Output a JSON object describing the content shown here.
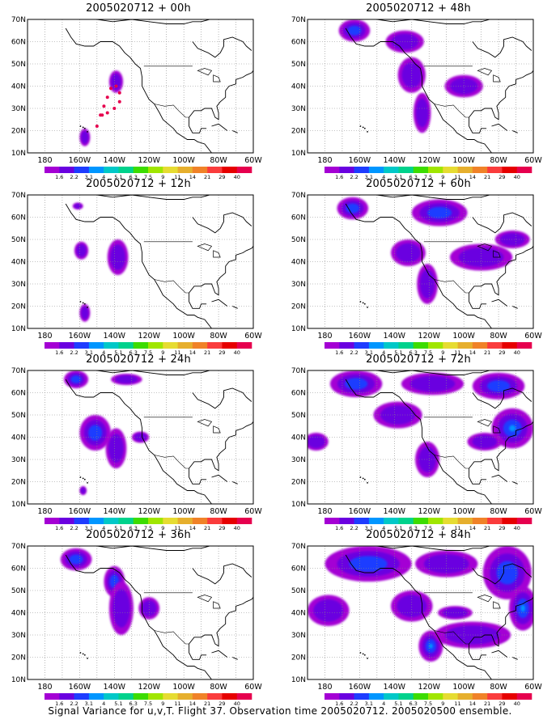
{
  "figure_caption": "Signal Variance for u,v,T. Flight 37. Observation time 2005020712. 2005020500 ensemble.",
  "colors": {
    "levels": [
      "#a400d4",
      "#6a00e0",
      "#1e3cff",
      "#0096ff",
      "#00c8c8",
      "#00d28c",
      "#3cdc00",
      "#a0e600",
      "#e6dc32",
      "#e6af2d",
      "#f08228",
      "#fa3c3c",
      "#e60000",
      "#e6004e"
    ],
    "map_line": "#000000",
    "grid": "#888888"
  },
  "chart_data": [
    {
      "type": "heatmap",
      "title": "2005020712 + 00h",
      "x_ticks": [
        "180",
        "160W",
        "140W",
        "120W",
        "100W",
        "80W",
        "60W"
      ],
      "y_ticks": [
        "10N",
        "20N",
        "30N",
        "40N",
        "50N",
        "60N",
        "70N"
      ],
      "xlim": [
        -190,
        -60
      ],
      "ylim": [
        10,
        70
      ],
      "grid": true,
      "colorbar_labels": [
        "1.6",
        "2.2",
        "3.1",
        "4",
        "5.1",
        "6.3",
        "7.5",
        "9",
        "11",
        "14",
        "21",
        "29",
        "40"
      ],
      "blobs": [
        {
          "lon": -139,
          "lat": 42,
          "rlon": 4,
          "rlat": 5,
          "level": 1
        },
        {
          "lon": -157,
          "lat": 17,
          "rlon": 3,
          "rlat": 4,
          "level": 1
        }
      ],
      "track": [
        [
          -150,
          22
        ],
        [
          -148,
          27
        ],
        [
          -146,
          31
        ],
        [
          -144,
          35
        ],
        [
          -142,
          39
        ],
        [
          -139,
          40
        ],
        [
          -137,
          37
        ],
        [
          -137,
          33
        ],
        [
          -140,
          30
        ],
        [
          -144,
          28
        ],
        [
          -147,
          27
        ]
      ]
    },
    {
      "type": "heatmap",
      "title": "2005020712 + 12h",
      "x_ticks": [
        "180",
        "160W",
        "140W",
        "120W",
        "100W",
        "80W",
        "60W"
      ],
      "y_ticks": [
        "10N",
        "20N",
        "30N",
        "40N",
        "50N",
        "60N",
        "70N"
      ],
      "xlim": [
        -190,
        -60
      ],
      "ylim": [
        10,
        70
      ],
      "grid": true,
      "colorbar_labels": [
        "1.6",
        "2.2",
        "3.1",
        "4",
        "5.1",
        "6.3",
        "7.5",
        "9",
        "11",
        "14",
        "21",
        "29",
        "40"
      ],
      "blobs": [
        {
          "lon": -138,
          "lat": 42,
          "rlon": 6,
          "rlat": 8,
          "level": 1
        },
        {
          "lon": -159,
          "lat": 45,
          "rlon": 4,
          "rlat": 4,
          "level": 1
        },
        {
          "lon": -157,
          "lat": 17,
          "rlon": 3,
          "rlat": 4,
          "level": 1
        },
        {
          "lon": -161,
          "lat": 65,
          "rlon": 3,
          "rlat": 1.5,
          "level": 1
        }
      ],
      "track": []
    },
    {
      "type": "heatmap",
      "title": "2005020712 + 24h",
      "x_ticks": [
        "180",
        "160W",
        "140W",
        "120W",
        "100W",
        "80W",
        "60W"
      ],
      "y_ticks": [
        "10N",
        "20N",
        "30N",
        "40N",
        "50N",
        "60N",
        "70N"
      ],
      "xlim": [
        -190,
        -60
      ],
      "ylim": [
        10,
        70
      ],
      "grid": true,
      "colorbar_labels": [
        "1.6",
        "2.2",
        "3.1",
        "4",
        "5.1",
        "6.3",
        "7.5",
        "9",
        "11",
        "14",
        "21",
        "29",
        "40"
      ],
      "blobs": [
        {
          "lon": -151,
          "lat": 42,
          "rlon": 9,
          "rlat": 8,
          "level": 2
        },
        {
          "lon": -139,
          "lat": 35,
          "rlon": 6,
          "rlat": 9,
          "level": 1
        },
        {
          "lon": -162,
          "lat": 66,
          "rlon": 7,
          "rlat": 4,
          "level": 2
        },
        {
          "lon": -133,
          "lat": 66,
          "rlon": 9,
          "rlat": 2.5,
          "level": 1
        },
        {
          "lon": -125,
          "lat": 40,
          "rlon": 5,
          "rlat": 2.5,
          "level": 1
        },
        {
          "lon": -158,
          "lat": 16,
          "rlon": 2,
          "rlat": 2,
          "level": 1
        }
      ],
      "track": []
    },
    {
      "type": "heatmap",
      "title": "2005020712 + 36h",
      "x_ticks": [
        "180",
        "160W",
        "140W",
        "120W",
        "100W",
        "80W",
        "60W"
      ],
      "y_ticks": [
        "10N",
        "20N",
        "30N",
        "40N",
        "50N",
        "60N",
        "70N"
      ],
      "xlim": [
        -190,
        -60
      ],
      "ylim": [
        10,
        70
      ],
      "grid": true,
      "colorbar_labels": [
        "1.6",
        "2.2",
        "3.1",
        "4",
        "5.1",
        "6.3",
        "7.5",
        "9",
        "11",
        "14",
        "21",
        "29",
        "40"
      ],
      "blobs": [
        {
          "lon": -162,
          "lat": 64,
          "rlon": 9,
          "rlat": 5,
          "level": 2
        },
        {
          "lon": -140,
          "lat": 54,
          "rlon": 6,
          "rlat": 7,
          "level": 2
        },
        {
          "lon": -136,
          "lat": 42,
          "rlon": 7,
          "rlat": 12,
          "level": 1
        },
        {
          "lon": -120,
          "lat": 42,
          "rlon": 6,
          "rlat": 5,
          "level": 1
        }
      ],
      "track": []
    },
    {
      "type": "heatmap",
      "title": "2005020712 + 48h",
      "x_ticks": [
        "180",
        "160W",
        "140W",
        "120W",
        "100W",
        "80W",
        "60W"
      ],
      "y_ticks": [
        "10N",
        "20N",
        "30N",
        "40N",
        "50N",
        "60N",
        "70N"
      ],
      "xlim": [
        -190,
        -60
      ],
      "ylim": [
        10,
        70
      ],
      "grid": true,
      "colorbar_labels": [
        "1.6",
        "2.2",
        "3.1",
        "4",
        "5.1",
        "6.3",
        "7.5",
        "9",
        "11",
        "14",
        "21",
        "29",
        "40"
      ],
      "blobs": [
        {
          "lon": -163,
          "lat": 65,
          "rlon": 9,
          "rlat": 5,
          "level": 2
        },
        {
          "lon": -134,
          "lat": 60,
          "rlon": 11,
          "rlat": 5,
          "level": 1
        },
        {
          "lon": -130,
          "lat": 45,
          "rlon": 8,
          "rlat": 8,
          "level": 1
        },
        {
          "lon": -124,
          "lat": 28,
          "rlon": 5,
          "rlat": 9,
          "level": 1
        },
        {
          "lon": -100,
          "lat": 40,
          "rlon": 11,
          "rlat": 5,
          "level": 1
        }
      ],
      "track": []
    },
    {
      "type": "heatmap",
      "title": "2005020712 + 60h",
      "x_ticks": [
        "180",
        "160W",
        "140W",
        "120W",
        "100W",
        "80W",
        "60W"
      ],
      "y_ticks": [
        "10N",
        "20N",
        "30N",
        "40N",
        "50N",
        "60N",
        "70N"
      ],
      "xlim": [
        -190,
        -60
      ],
      "ylim": [
        10,
        70
      ],
      "grid": true,
      "colorbar_labels": [
        "1.6",
        "2.2",
        "3.1",
        "4",
        "5.1",
        "6.3",
        "7.5",
        "9",
        "11",
        "14",
        "21",
        "29",
        "40"
      ],
      "blobs": [
        {
          "lon": -164,
          "lat": 64,
          "rlon": 9,
          "rlat": 5,
          "level": 2
        },
        {
          "lon": -114,
          "lat": 62,
          "rlon": 16,
          "rlat": 6,
          "level": 2
        },
        {
          "lon": -132,
          "lat": 44,
          "rlon": 10,
          "rlat": 6,
          "level": 1
        },
        {
          "lon": -121,
          "lat": 30,
          "rlon": 6,
          "rlat": 9,
          "level": 1
        },
        {
          "lon": -90,
          "lat": 42,
          "rlon": 18,
          "rlat": 6,
          "level": 1
        },
        {
          "lon": -72,
          "lat": 50,
          "rlon": 10,
          "rlat": 4,
          "level": 1
        }
      ],
      "track": []
    },
    {
      "type": "heatmap",
      "title": "2005020712 + 72h",
      "x_ticks": [
        "180",
        "160W",
        "140W",
        "120W",
        "100W",
        "80W",
        "60W"
      ],
      "y_ticks": [
        "10N",
        "20N",
        "30N",
        "40N",
        "50N",
        "60N",
        "70N"
      ],
      "xlim": [
        -190,
        -60
      ],
      "ylim": [
        10,
        70
      ],
      "grid": true,
      "colorbar_labels": [
        "1.6",
        "2.2",
        "3.1",
        "4",
        "5.1",
        "6.3",
        "7.5",
        "9",
        "11",
        "14",
        "21",
        "29",
        "40"
      ],
      "blobs": [
        {
          "lon": -162,
          "lat": 64,
          "rlon": 15,
          "rlat": 6,
          "level": 2
        },
        {
          "lon": -118,
          "lat": 64,
          "rlon": 18,
          "rlat": 5,
          "level": 1
        },
        {
          "lon": -80,
          "lat": 63,
          "rlon": 15,
          "rlat": 6,
          "level": 2
        },
        {
          "lon": -138,
          "lat": 50,
          "rlon": 14,
          "rlat": 6,
          "level": 1
        },
        {
          "lon": -72,
          "lat": 44,
          "rlon": 12,
          "rlat": 9,
          "level": 3
        },
        {
          "lon": -121,
          "lat": 30,
          "rlon": 7,
          "rlat": 8,
          "level": 1
        },
        {
          "lon": -185,
          "lat": 38,
          "rlon": 7,
          "rlat": 4,
          "level": 1
        },
        {
          "lon": -88,
          "lat": 38,
          "rlon": 10,
          "rlat": 4,
          "level": 1
        }
      ],
      "track": []
    },
    {
      "type": "heatmap",
      "title": "2005020712 + 84h",
      "x_ticks": [
        "180",
        "160W",
        "140W",
        "120W",
        "100W",
        "80W",
        "60W"
      ],
      "y_ticks": [
        "10N",
        "20N",
        "30N",
        "40N",
        "50N",
        "60N",
        "70N"
      ],
      "xlim": [
        -190,
        -60
      ],
      "ylim": [
        10,
        70
      ],
      "grid": true,
      "colorbar_labels": [
        "1.6",
        "2.2",
        "3.1",
        "4",
        "5.1",
        "6.3",
        "7.5",
        "9",
        "11",
        "14",
        "21",
        "29",
        "40"
      ],
      "blobs": [
        {
          "lon": -155,
          "lat": 62,
          "rlon": 25,
          "rlat": 8,
          "level": 2
        },
        {
          "lon": -110,
          "lat": 62,
          "rlon": 18,
          "rlat": 6,
          "level": 1
        },
        {
          "lon": -75,
          "lat": 58,
          "rlon": 14,
          "rlat": 12,
          "level": 2
        },
        {
          "lon": -66,
          "lat": 42,
          "rlon": 8,
          "rlat": 10,
          "level": 4
        },
        {
          "lon": -130,
          "lat": 43,
          "rlon": 12,
          "rlat": 7,
          "level": 1
        },
        {
          "lon": -178,
          "lat": 41,
          "rlon": 12,
          "rlat": 7,
          "level": 1
        },
        {
          "lon": -119,
          "lat": 25,
          "rlon": 7,
          "rlat": 7,
          "level": 3
        },
        {
          "lon": -95,
          "lat": 30,
          "rlon": 22,
          "rlat": 6,
          "level": 1
        },
        {
          "lon": -105,
          "lat": 40,
          "rlon": 10,
          "rlat": 3,
          "level": 1
        }
      ],
      "track": []
    }
  ]
}
